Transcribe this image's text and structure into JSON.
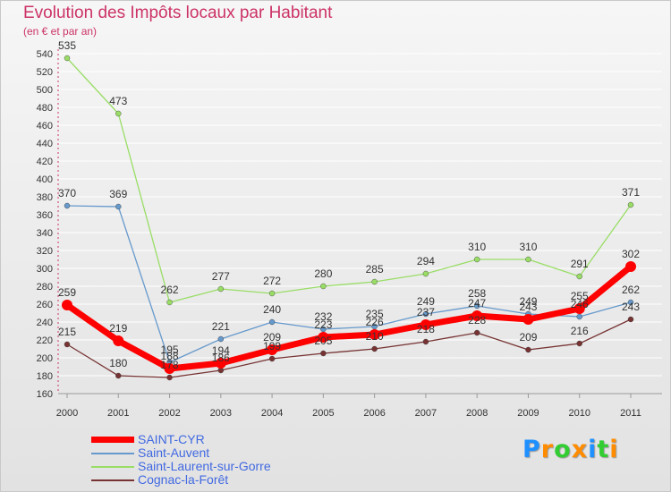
{
  "title": "Evolution des Impôts locaux par Habitant",
  "subtitle": "(en € et par an)",
  "logo": {
    "text": "Proxiti",
    "letters": [
      "P",
      "r",
      "o",
      "x",
      "i",
      "t",
      "i"
    ],
    "colors": [
      "#1e90ff",
      "#ff8c00",
      "#32cd32",
      "#ff8c00",
      "#1e90ff",
      "#32cd32",
      "#ff8c00"
    ]
  },
  "chart_data": {
    "type": "line",
    "title": "Evolution des Impôts locaux par Habitant",
    "ylabel": "(en € et par an)",
    "xlabel": "",
    "categories": [
      "2000",
      "2001",
      "2002",
      "2003",
      "2004",
      "2005",
      "2006",
      "2007",
      "2008",
      "2009",
      "2010",
      "2011"
    ],
    "ylim": [
      160,
      540
    ],
    "yticks": [
      160,
      180,
      200,
      220,
      240,
      260,
      280,
      300,
      320,
      340,
      360,
      380,
      400,
      420,
      440,
      460,
      480,
      500,
      520,
      540
    ],
    "series": [
      {
        "name": "SAINT-CYR",
        "color": "#ff0000",
        "values": [
          259,
          219,
          188,
          194,
          209,
          223,
          226,
          237,
          247,
          243,
          255,
          302
        ],
        "labels": [
          "259",
          "219",
          "188",
          "194",
          "209",
          "223",
          "226",
          "237",
          "247",
          "243",
          "255",
          "302"
        ]
      },
      {
        "name": "Saint-Auvent",
        "color": "#6699cc",
        "values": [
          370,
          369,
          195,
          221,
          240,
          232,
          235,
          249,
          258,
          249,
          246,
          262
        ],
        "labels": [
          "370",
          "369",
          "195",
          "221",
          "240",
          "232",
          "235",
          "249",
          "258",
          "249",
          "246",
          "262"
        ]
      },
      {
        "name": "Saint-Laurent-sur-Gorre",
        "color": "#99dd66",
        "values": [
          535,
          473,
          262,
          277,
          272,
          280,
          285,
          294,
          310,
          310,
          291,
          371
        ],
        "labels": [
          "535",
          "473",
          "262",
          "277",
          "272",
          "280",
          "285",
          "294",
          "310",
          "310",
          "291",
          "371"
        ]
      },
      {
        "name": "Cognac-la-Forêt",
        "color": "#773333",
        "values": [
          215,
          180,
          178,
          186,
          199,
          205,
          210,
          218,
          228,
          209,
          216,
          243
        ],
        "labels": [
          "215",
          "180",
          "178",
          "186",
          "199",
          "205",
          "210",
          "218",
          "228",
          "209",
          "216",
          "243"
        ]
      }
    ],
    "legend_position": "bottom-left"
  }
}
